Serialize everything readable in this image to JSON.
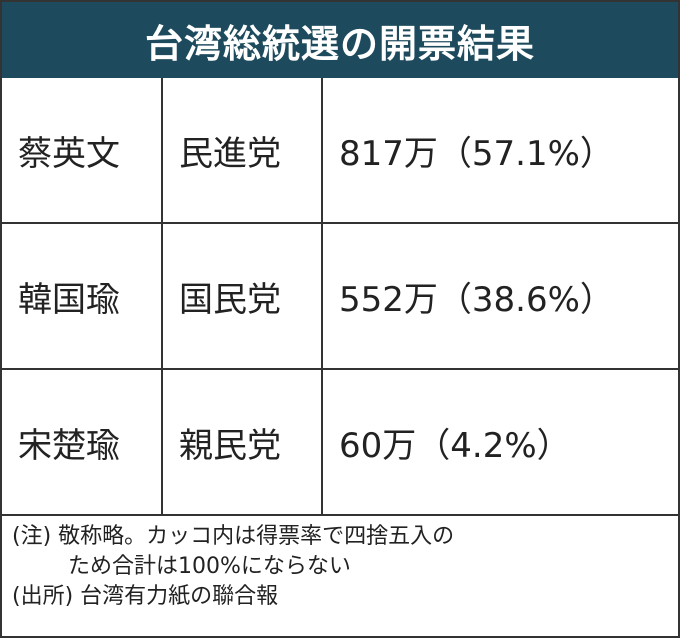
{
  "header": {
    "title": "台湾総統選の開票結果"
  },
  "table": {
    "rows": [
      [
        "蔡英文",
        "民進党",
        "817万（57.1%）"
      ],
      [
        "韓国瑜",
        "国民党",
        "552万（38.6%）"
      ],
      [
        "宋楚瑜",
        "親民党",
        "60万（4.2%）"
      ]
    ]
  },
  "notes": [
    "(注) 敬称略。カッコ内は得票率で四捨五入の",
    "ため合計は100%にならない",
    "(出所) 台湾有力紙の聯合報"
  ]
}
